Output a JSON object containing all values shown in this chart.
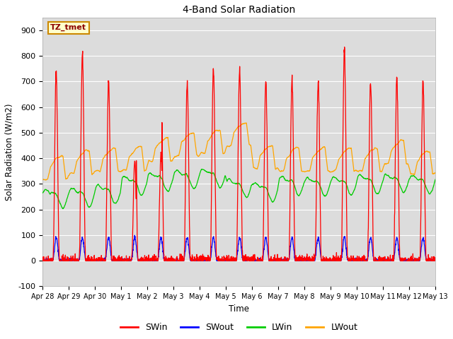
{
  "title": "4-Band Solar Radiation",
  "xlabel": "Time",
  "ylabel": "Solar Radiation (W/m2)",
  "annotation": "TZ_tmet",
  "ylim": [
    -100,
    950
  ],
  "yticks": [
    -100,
    0,
    100,
    200,
    300,
    400,
    500,
    600,
    700,
    800,
    900
  ],
  "xtick_labels": [
    "Apr 28",
    "Apr 29",
    "Apr 30",
    "May 1",
    "May 2",
    "May 3",
    "May 4",
    "May 5",
    "May 6",
    "May 7",
    "May 8",
    "May 9",
    "May 10",
    "May 11",
    "May 12",
    "May 13"
  ],
  "colors": {
    "SWin": "#ff0000",
    "SWout": "#0000ff",
    "LWin": "#00cc00",
    "LWout": "#ffa500"
  },
  "legend_labels": [
    "SWin",
    "SWout",
    "LWin",
    "LWout"
  ],
  "plot_bg_color": "#dcdcdc",
  "fig_bg_color": "#ffffff",
  "grid_color": "#ffffff",
  "annotation_facecolor": "#ffffcc",
  "annotation_edgecolor": "#cc8800",
  "annotation_textcolor": "#8b0000",
  "figsize": [
    6.4,
    4.8
  ],
  "dpi": 100
}
